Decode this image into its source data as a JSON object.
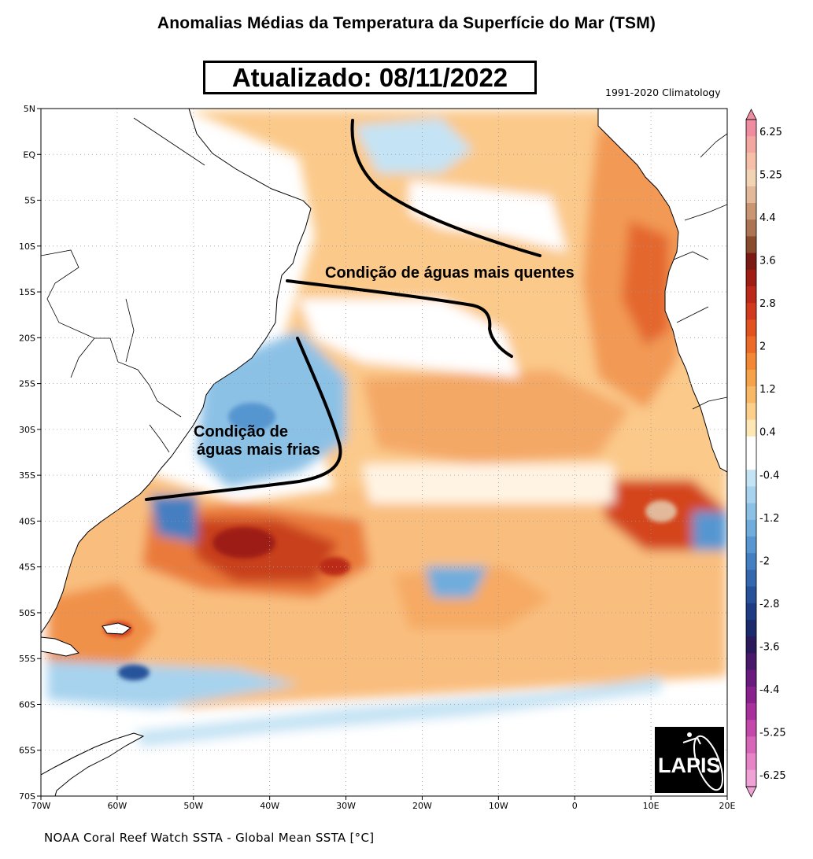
{
  "title": "Anomalias Médias da Temperatura da Superfície do Mar  (TSM)",
  "updated": "Atualizado: 08/11/2022",
  "climatology": "1991-2020 Climatology",
  "footer": "NOAA Coral Reef Watch SSTA - Global Mean SSTA [°C]",
  "map": {
    "lon_range": [
      -70,
      20
    ],
    "lat_range": [
      -70,
      5
    ],
    "lon_ticks": [
      "70W",
      "60W",
      "50W",
      "40W",
      "30W",
      "20W",
      "10W",
      "0",
      "10E",
      "20E"
    ],
    "lat_ticks": [
      "5N",
      "EQ",
      "5S",
      "10S",
      "15S",
      "20S",
      "25S",
      "30S",
      "35S",
      "40S",
      "45S",
      "50S",
      "55S",
      "60S",
      "65S",
      "70S"
    ],
    "grid": "dotted"
  },
  "annotations": {
    "warm": "Condição de águas mais quentes",
    "cold_line1": "Condição de",
    "cold_line2": "águas mais frias"
  },
  "colorbar": {
    "ticks": [
      "6.25",
      "5.25",
      "4.4",
      "3.6",
      "2.8",
      "2",
      "1.2",
      "0.4",
      "-0.4",
      "-1.2",
      "-2",
      "-2.8",
      "-3.6",
      "-4.4",
      "-5.25",
      "-6.25"
    ],
    "colors": [
      "#f08ca0",
      "#f4a7a0",
      "#f6c0a8",
      "#f2d3b4",
      "#e2b99a",
      "#c99572",
      "#ad7453",
      "#8a4b2c",
      "#7a1a12",
      "#9e1e14",
      "#bb2a18",
      "#d23a1e",
      "#e2521f",
      "#ec6a28",
      "#f28836",
      "#f6a24a",
      "#f8b866",
      "#fccf8a",
      "#fde7b4",
      "#ffffff",
      "#ffffff",
      "#c4e3f4",
      "#a7d3ee",
      "#8cc1e6",
      "#70addd",
      "#5796d0",
      "#447fc1",
      "#3468ae",
      "#27529a",
      "#1d3c84",
      "#1a2a6c",
      "#2a1a5c",
      "#4a186a",
      "#6a1a7e",
      "#8a208e",
      "#a8309c",
      "#c448aa",
      "#d866b8",
      "#e784c8",
      "#f0a2d6"
    ]
  },
  "logo": {
    "text": "LAPIS"
  }
}
